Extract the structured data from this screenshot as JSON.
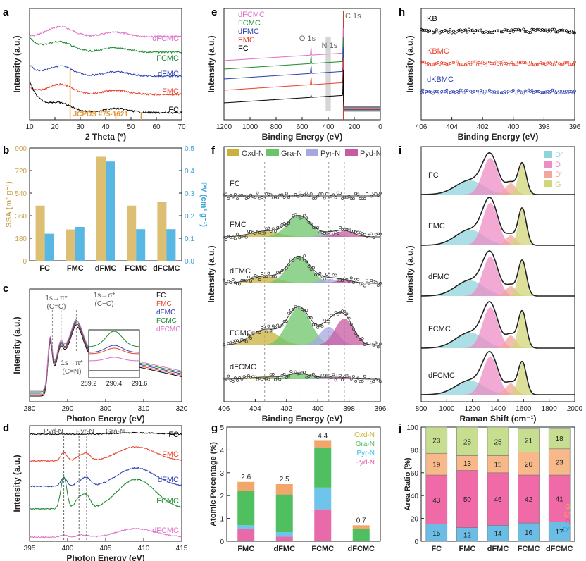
{
  "figure": {
    "colors": {
      "FC": "#000000",
      "FMC": "#e8412c",
      "dFMC": "#2b3fb0",
      "FCMC": "#1a8a2e",
      "dFCMC": "#dd6fc8",
      "KB": "#000000",
      "KBMC": "#e8412c",
      "dKBMC": "#2b3fb0"
    }
  },
  "chart_data": [
    {
      "panel": "a",
      "type": "line",
      "xlabel": "2 Theta (°)",
      "ylabel": "Intensity (a.u.)",
      "xticks": [
        "10",
        "20",
        "30",
        "40",
        "50",
        "60",
        "70"
      ],
      "xlim": [
        10,
        70
      ],
      "series": [
        {
          "name": "dFCMC"
        },
        {
          "name": "FCMC"
        },
        {
          "name": "dFMC"
        },
        {
          "name": "FMC"
        },
        {
          "name": "FC"
        }
      ],
      "annotation": "JCPDS #75-1621"
    },
    {
      "panel": "b",
      "type": "bar",
      "categories": [
        "FC",
        "FMC",
        "dFMC",
        "FCMC",
        "dFCMC"
      ],
      "series": [
        {
          "name": "SSA",
          "axis": "left",
          "color": "#dcbf73",
          "values": [
            440,
            250,
            830,
            440,
            470
          ]
        },
        {
          "name": "PV",
          "axis": "right",
          "color": "#58b7e3",
          "values": [
            0.12,
            0.15,
            0.44,
            0.14,
            0.14
          ]
        }
      ],
      "ylabel_left": "SSA (m² g⁻¹)",
      "ylabel_right": "PV (cm³ g⁻¹)",
      "yticks_left": [
        "0",
        "180",
        "360",
        "540",
        "720",
        "900"
      ],
      "yticks_right": [
        "0.0",
        "0.1",
        "0.2",
        "0.3",
        "0.4",
        "0.5"
      ],
      "ylim_left": [
        0,
        900
      ],
      "ylim_right": [
        0,
        0.5
      ]
    },
    {
      "panel": "c",
      "type": "line",
      "xlabel": "Photon Energy (eV)",
      "ylabel": "Intensity (a.u.)",
      "xticks": [
        "280",
        "290",
        "300",
        "310",
        "320"
      ],
      "xlim": [
        280,
        320
      ],
      "series": [
        {
          "name": "FC"
        },
        {
          "name": "FMC"
        },
        {
          "name": "dFMC"
        },
        {
          "name": "FCMC"
        },
        {
          "name": "dFCMC"
        }
      ],
      "annotations": [
        {
          "l1": "1s→π*",
          "l2": "(C=C)"
        },
        {
          "l1": "1s→σ*",
          "l2": "(C−C)"
        },
        {
          "l1": "1s→π*",
          "l2": "(C=N)"
        }
      ],
      "inset_xticks": [
        "289.2",
        "290.4",
        "291.6"
      ]
    },
    {
      "panel": "d",
      "type": "line",
      "xlabel": "Photon Energy (eV)",
      "ylabel": "Intensity (a.u.)",
      "xticks": [
        "395",
        "400",
        "405",
        "410",
        "415"
      ],
      "xlim": [
        395,
        415
      ],
      "series": [
        {
          "name": "FC"
        },
        {
          "name": "FMC"
        },
        {
          "name": "dFMC"
        },
        {
          "name": "FCMC"
        },
        {
          "name": "dFCMC"
        }
      ],
      "peaks": [
        "Pyd-N",
        "Pyr-N",
        "Gra-N"
      ]
    },
    {
      "panel": "e",
      "type": "line",
      "xlabel": "Binding Energy (eV)",
      "ylabel": "Intensity (a.u.)",
      "xticks": [
        "1200",
        "1000",
        "800",
        "600",
        "400",
        "200",
        "0"
      ],
      "xlim": [
        1200,
        0
      ],
      "series": [
        {
          "name": "dFCMC"
        },
        {
          "name": "FCMC"
        },
        {
          "name": "dFMC"
        },
        {
          "name": "FMC"
        },
        {
          "name": "FC"
        }
      ],
      "peaks": [
        "O 1s",
        "N 1s",
        "C 1s"
      ]
    },
    {
      "panel": "f",
      "type": "scatter",
      "xlabel": "Binding Energy (eV)",
      "ylabel": "Intensity (a.u.)",
      "xticks": [
        "406",
        "404",
        "402",
        "400",
        "398",
        "396"
      ],
      "xlim": [
        406,
        396
      ],
      "legend": [
        {
          "name": "Oxd-N",
          "color": "#c9b23c"
        },
        {
          "name": "Gra-N",
          "color": "#6cc46a"
        },
        {
          "name": "Pyr-N",
          "color": "#a7a8e0"
        },
        {
          "name": "Pyd-N",
          "color": "#c85aa0"
        }
      ],
      "samples": [
        "FC",
        "FMC",
        "dFMC",
        "FCMC",
        "dFCMC"
      ]
    },
    {
      "panel": "g",
      "type": "bar",
      "stacked": true,
      "categories": [
        "FMC",
        "dFMC",
        "FCMC",
        "dFCMC"
      ],
      "ylabel": "Atomic Percentage (%)",
      "yticks": [
        "0",
        "1",
        "2",
        "3",
        "4",
        "5"
      ],
      "ylim": [
        0,
        5
      ],
      "series": [
        {
          "name": "Pyd-N",
          "color": "#e86aa8",
          "values": [
            0.55,
            0.2,
            1.4,
            0
          ]
        },
        {
          "name": "Pyr-N",
          "color": "#6fc4ec",
          "values": [
            0.15,
            0.2,
            0.95,
            0
          ]
        },
        {
          "name": "Gra-N",
          "color": "#4fbf60",
          "values": [
            1.5,
            1.65,
            1.75,
            0.55
          ]
        },
        {
          "name": "Oxd-N",
          "color": "#f3a66b",
          "values": [
            0.4,
            0.45,
            0.3,
            0.15
          ]
        }
      ],
      "totals": [
        "2.6",
        "2.5",
        "4.4",
        "0.7"
      ],
      "legend": [
        "Oxd-N",
        "Gra-N",
        "Pyr-N",
        "Pyd-N"
      ],
      "legend_colors": [
        "#c9b23c",
        "#4fbf60",
        "#33c1e8",
        "#e0509c"
      ]
    },
    {
      "panel": "h",
      "type": "scatter",
      "xlabel": "Binding Energy (eV)",
      "ylabel": "Intensity (a.u.)",
      "xticks": [
        "406",
        "404",
        "402",
        "400",
        "398",
        "396"
      ],
      "xlim": [
        406,
        396
      ],
      "series": [
        {
          "name": "KB"
        },
        {
          "name": "KBMC"
        },
        {
          "name": "dKBMC"
        }
      ]
    },
    {
      "panel": "i",
      "type": "line",
      "xlabel": "Raman Shift (cm⁻¹)",
      "ylabel": "Intensity (a.u.)",
      "xticks": [
        "800",
        "1000",
        "1200",
        "1400",
        "1600",
        "1800",
        "2000"
      ],
      "xlim": [
        800,
        2000
      ],
      "legend": [
        {
          "name": "D\"",
          "color": "#8fd3dc"
        },
        {
          "name": "D",
          "color": "#ee8cc4"
        },
        {
          "name": "D'",
          "color": "#f2a59a"
        },
        {
          "name": "G",
          "color": "#d2d67a"
        }
      ],
      "samples": [
        "FC",
        "FMC",
        "dFMC",
        "FCMC",
        "dFCMC"
      ]
    },
    {
      "panel": "j",
      "type": "bar",
      "stacked": true,
      "categories": [
        "FC",
        "FMC",
        "dFMC",
        "FCMC",
        "dFCMC"
      ],
      "ylabel": "Area Ratio (%)",
      "yticks": [
        "0",
        "20",
        "40",
        "60",
        "80",
        "100"
      ],
      "ylim": [
        0,
        100
      ],
      "series": [
        {
          "name": "D\"",
          "color": "#6bbde6",
          "values": [
            15,
            12,
            14,
            16,
            17
          ]
        },
        {
          "name": "D",
          "color": "#ef6aa6",
          "values": [
            43,
            50,
            46,
            42,
            41
          ]
        },
        {
          "name": "D'",
          "color": "#f7b98a",
          "values": [
            19,
            13,
            15,
            20,
            23
          ]
        },
        {
          "name": "G",
          "color": "#c7dd90",
          "values": [
            23,
            25,
            25,
            21,
            18
          ]
        }
      ],
      "legend": [
        "G",
        "D'",
        "D",
        "D\""
      ],
      "legend_colors": [
        "#b9c94a",
        "#f0a064",
        "#e0509c",
        "#33a6e0"
      ]
    }
  ]
}
